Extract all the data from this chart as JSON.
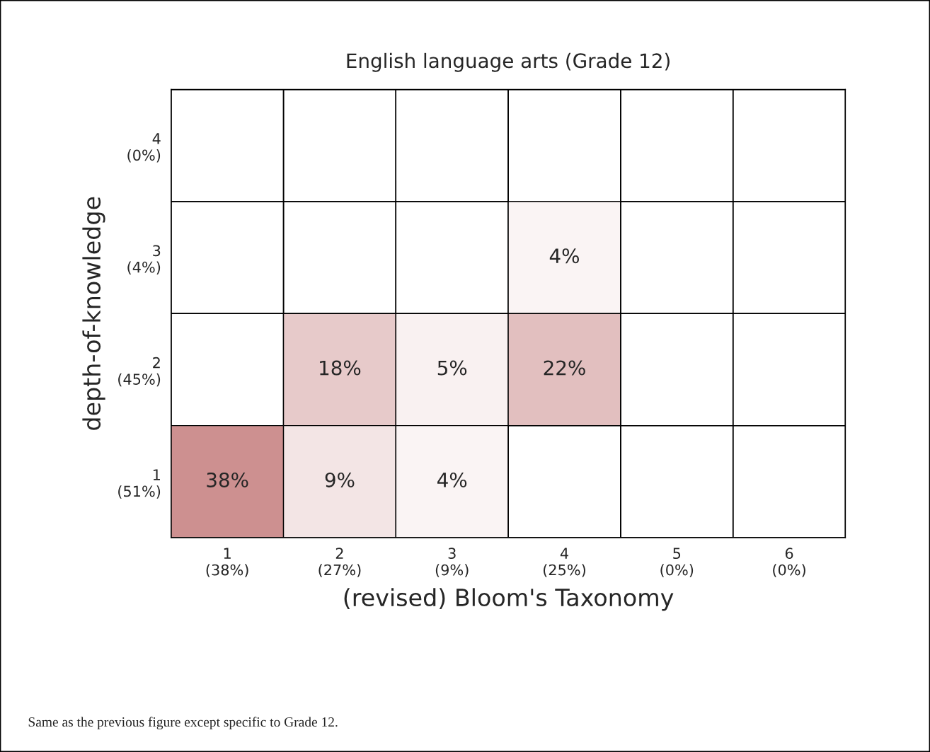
{
  "chart_data": {
    "type": "heatmap",
    "title": "English language arts (Grade 12)",
    "xlabel": "(revised) Bloom's Taxonomy",
    "ylabel": "depth-of-knowledge",
    "categories": [
      "1\n(38%)",
      "2\n(27%)",
      "3\n(9%)",
      "4\n(25%)",
      "5\n(0%)",
      "6\n(0%)"
    ],
    "y_categories": [
      "4\n(0%)",
      "3\n(4%)",
      "2\n(45%)",
      "1\n(51%)"
    ],
    "cells": [
      [
        null,
        null,
        null,
        null,
        null,
        null
      ],
      [
        null,
        null,
        null,
        4,
        null,
        null
      ],
      [
        null,
        18,
        5,
        22,
        null,
        null
      ],
      [
        38,
        9,
        4,
        null,
        null,
        null
      ]
    ],
    "cell_labels": [
      [
        null,
        null,
        null,
        null,
        null,
        null
      ],
      [
        null,
        null,
        null,
        "4%",
        null,
        null
      ],
      [
        null,
        "18%",
        "5%",
        "22%",
        null,
        null
      ],
      [
        "38%",
        "9%",
        "4%",
        null,
        null,
        null
      ]
    ],
    "grid": true,
    "annotations": [
      "Same as the previous figure except specific to Grade 12."
    ]
  }
}
